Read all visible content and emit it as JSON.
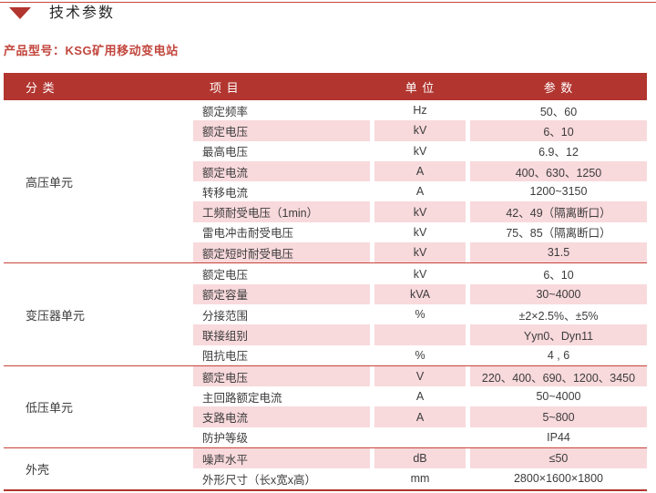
{
  "page": {
    "title": "技术参数",
    "product_label": "产品型号：KSG矿用移动变电站"
  },
  "colors": {
    "header_bg": "#b2352f",
    "stripe_pink": "#f8d9dc",
    "separator_red": "#c7453b",
    "product_text": "#c2453c"
  },
  "table": {
    "headers": {
      "category": "分 类",
      "item": "项 目",
      "unit": "单 位",
      "param": "参 数"
    },
    "sections": [
      {
        "category": "高压单元",
        "rows": [
          {
            "item": "额定频率",
            "unit": "Hz",
            "param": "50、60"
          },
          {
            "item": "额定电压",
            "unit": "kV",
            "param": "6、10"
          },
          {
            "item": "最高电压",
            "unit": "kV",
            "param": "6.9、12"
          },
          {
            "item": "额定电流",
            "unit": "A",
            "param": "400、630、1250"
          },
          {
            "item": "转移电流",
            "unit": "A",
            "param": "1200~3150"
          },
          {
            "item": "工频耐受电压（1min）",
            "unit": "kV",
            "param": "42、49（隔离断口）"
          },
          {
            "item": "雷电冲击耐受电压",
            "unit": "kV",
            "param": "75、85（隔离断口）"
          },
          {
            "item": "额定短时耐受电压",
            "unit": "kV",
            "param": "31.5"
          }
        ]
      },
      {
        "category": "变压器单元",
        "rows": [
          {
            "item": "额定电压",
            "unit": "kV",
            "param": "6、10"
          },
          {
            "item": "额定容量",
            "unit": "kVA",
            "param": "30~4000"
          },
          {
            "item": "分接范围",
            "unit": "%",
            "param": "±2×2.5%、±5%"
          },
          {
            "item": "联接组别",
            "unit": "",
            "param": "Yyn0、Dyn11"
          },
          {
            "item": "阻抗电压",
            "unit": "%",
            "param": "4 , 6"
          }
        ]
      },
      {
        "category": "低压单元",
        "rows": [
          {
            "item": "额定电压",
            "unit": "V",
            "param": "220、400、690、1200、3450"
          },
          {
            "item": "主回路额定电流",
            "unit": "A",
            "param": "50~4000"
          },
          {
            "item": "支路电流",
            "unit": "A",
            "param": "5~800"
          },
          {
            "item": "防护等级",
            "unit": "",
            "param": "IP44"
          }
        ]
      },
      {
        "category": "外壳",
        "rows": [
          {
            "item": "噪声水平",
            "unit": "dB",
            "param": "≤50"
          },
          {
            "item": "外形尺寸（长x宽x高）",
            "unit": "mm",
            "param": "2800×1600×1800"
          }
        ]
      }
    ]
  }
}
